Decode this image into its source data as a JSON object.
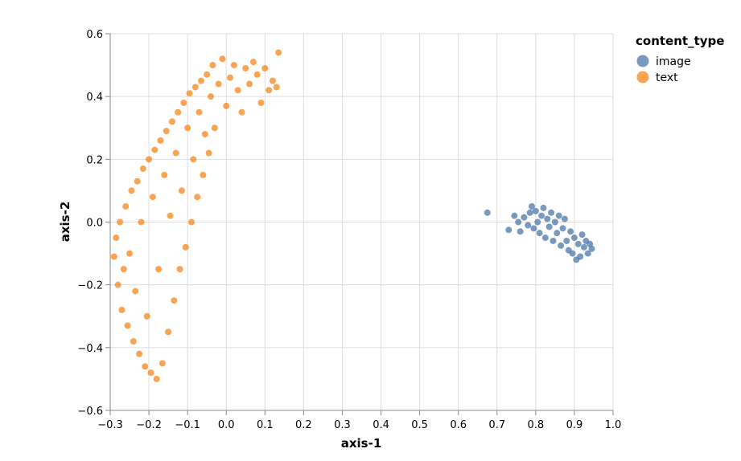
{
  "chart_data": {
    "type": "scatter",
    "xlabel": "axis-1",
    "ylabel": "axis-2",
    "xlim": [
      -0.3,
      1.0
    ],
    "ylim": [
      -0.6,
      0.6
    ],
    "xticks": [
      -0.3,
      -0.2,
      -0.1,
      0.0,
      0.1,
      0.2,
      0.3,
      0.4,
      0.5,
      0.6,
      0.7,
      0.8,
      0.9,
      1.0
    ],
    "xtick_labels": [
      "−0.3",
      "−0.2",
      "−0.1",
      "0.0",
      "0.1",
      "0.2",
      "0.3",
      "0.4",
      "0.5",
      "0.6",
      "0.7",
      "0.8",
      "0.9",
      "1.0"
    ],
    "yticks": [
      -0.6,
      -0.4,
      -0.2,
      0.0,
      0.2,
      0.4,
      0.6
    ],
    "ytick_labels": [
      "−0.6",
      "−0.4",
      "−0.2",
      "0.0",
      "0.2",
      "0.4",
      "0.6"
    ],
    "grid": true,
    "legend": {
      "title": "content_type",
      "placement": "top-right",
      "entries": [
        {
          "label": "image",
          "color": "#4c78a8"
        },
        {
          "label": "text",
          "color": "#f58518"
        }
      ]
    },
    "series": [
      {
        "name": "image",
        "color": "#4c78a8",
        "points": [
          [
            0.675,
            0.03
          ],
          [
            0.73,
            -0.025
          ],
          [
            0.745,
            0.02
          ],
          [
            0.755,
            0.0
          ],
          [
            0.76,
            -0.03
          ],
          [
            0.77,
            0.015
          ],
          [
            0.78,
            -0.01
          ],
          [
            0.785,
            0.03
          ],
          [
            0.79,
            0.05
          ],
          [
            0.795,
            -0.02
          ],
          [
            0.8,
            0.035
          ],
          [
            0.805,
            0.0
          ],
          [
            0.81,
            -0.035
          ],
          [
            0.815,
            0.02
          ],
          [
            0.82,
            0.045
          ],
          [
            0.825,
            -0.05
          ],
          [
            0.83,
            0.01
          ],
          [
            0.835,
            -0.015
          ],
          [
            0.84,
            0.03
          ],
          [
            0.845,
            -0.06
          ],
          [
            0.85,
            0.0
          ],
          [
            0.855,
            -0.035
          ],
          [
            0.86,
            0.02
          ],
          [
            0.865,
            -0.075
          ],
          [
            0.87,
            -0.02
          ],
          [
            0.875,
            0.01
          ],
          [
            0.88,
            -0.06
          ],
          [
            0.885,
            -0.09
          ],
          [
            0.89,
            -0.03
          ],
          [
            0.895,
            -0.1
          ],
          [
            0.9,
            -0.05
          ],
          [
            0.905,
            -0.12
          ],
          [
            0.91,
            -0.07
          ],
          [
            0.915,
            -0.11
          ],
          [
            0.92,
            -0.04
          ],
          [
            0.925,
            -0.08
          ],
          [
            0.93,
            -0.06
          ],
          [
            0.935,
            -0.1
          ],
          [
            0.94,
            -0.07
          ],
          [
            0.945,
            -0.085
          ]
        ]
      },
      {
        "name": "text",
        "color": "#f58518",
        "points": [
          [
            -0.29,
            -0.11
          ],
          [
            -0.285,
            -0.05
          ],
          [
            -0.28,
            -0.2
          ],
          [
            -0.275,
            0.0
          ],
          [
            -0.27,
            -0.28
          ],
          [
            -0.265,
            -0.15
          ],
          [
            -0.26,
            0.05
          ],
          [
            -0.255,
            -0.33
          ],
          [
            -0.25,
            -0.1
          ],
          [
            -0.245,
            0.1
          ],
          [
            -0.24,
            -0.38
          ],
          [
            -0.235,
            -0.22
          ],
          [
            -0.23,
            0.13
          ],
          [
            -0.225,
            -0.42
          ],
          [
            -0.22,
            0.0
          ],
          [
            -0.215,
            0.17
          ],
          [
            -0.21,
            -0.46
          ],
          [
            -0.205,
            -0.3
          ],
          [
            -0.2,
            0.2
          ],
          [
            -0.195,
            -0.48
          ],
          [
            -0.19,
            0.08
          ],
          [
            -0.185,
            0.23
          ],
          [
            -0.18,
            -0.5
          ],
          [
            -0.175,
            -0.15
          ],
          [
            -0.17,
            0.26
          ],
          [
            -0.165,
            -0.45
          ],
          [
            -0.16,
            0.15
          ],
          [
            -0.155,
            0.29
          ],
          [
            -0.15,
            -0.35
          ],
          [
            -0.145,
            0.02
          ],
          [
            -0.14,
            0.32
          ],
          [
            -0.135,
            -0.25
          ],
          [
            -0.13,
            0.22
          ],
          [
            -0.125,
            0.35
          ],
          [
            -0.12,
            -0.15
          ],
          [
            -0.115,
            0.1
          ],
          [
            -0.11,
            0.38
          ],
          [
            -0.105,
            -0.08
          ],
          [
            -0.1,
            0.3
          ],
          [
            -0.095,
            0.41
          ],
          [
            -0.09,
            0.0
          ],
          [
            -0.085,
            0.2
          ],
          [
            -0.08,
            0.43
          ],
          [
            -0.075,
            0.08
          ],
          [
            -0.07,
            0.35
          ],
          [
            -0.065,
            0.45
          ],
          [
            -0.06,
            0.15
          ],
          [
            -0.055,
            0.28
          ],
          [
            -0.05,
            0.47
          ],
          [
            -0.045,
            0.22
          ],
          [
            -0.04,
            0.4
          ],
          [
            -0.035,
            0.5
          ],
          [
            -0.03,
            0.3
          ],
          [
            -0.02,
            0.44
          ],
          [
            -0.01,
            0.52
          ],
          [
            0.0,
            0.37
          ],
          [
            0.01,
            0.46
          ],
          [
            0.02,
            0.5
          ],
          [
            0.03,
            0.42
          ],
          [
            0.04,
            0.35
          ],
          [
            0.05,
            0.49
          ],
          [
            0.06,
            0.44
          ],
          [
            0.07,
            0.51
          ],
          [
            0.08,
            0.47
          ],
          [
            0.09,
            0.38
          ],
          [
            0.11,
            0.42
          ],
          [
            0.12,
            0.45
          ],
          [
            0.13,
            0.43
          ],
          [
            0.135,
            0.54
          ],
          [
            0.1,
            0.49
          ]
        ]
      }
    ]
  }
}
